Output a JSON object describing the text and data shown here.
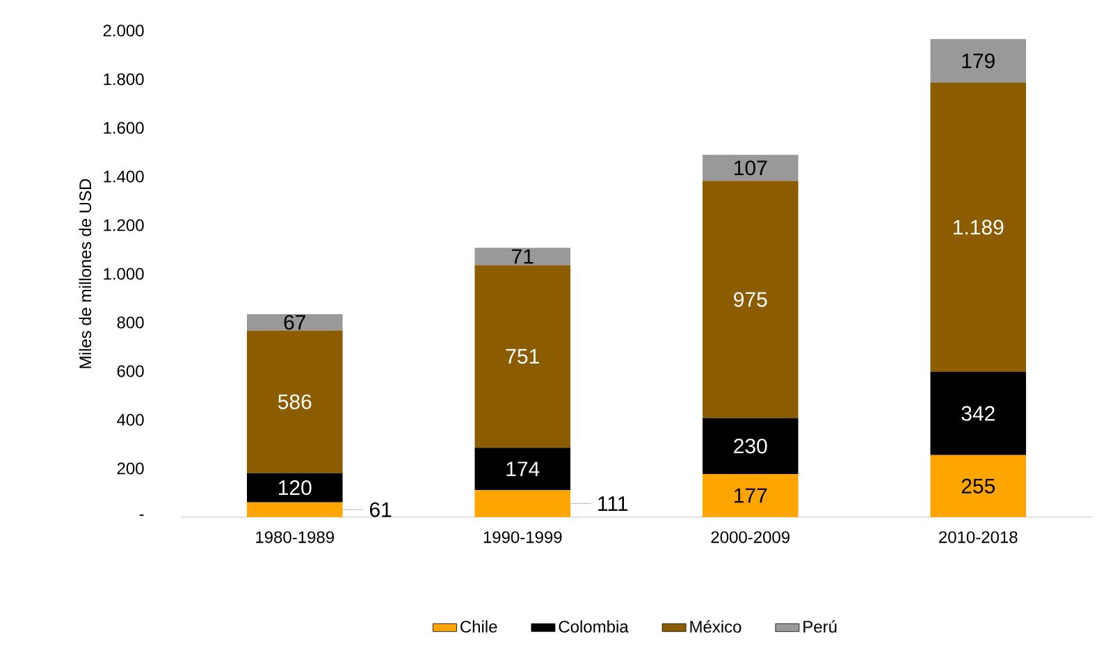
{
  "chart_data": {
    "type": "bar",
    "stacked": true,
    "ylabel": "Miles de millones de USD",
    "categories": [
      "1980-1989",
      "1990-1999",
      "2000-2009",
      "2010-2018"
    ],
    "series": [
      {
        "name": "Chile",
        "color": "#ffa500",
        "values": [
          61,
          111,
          177,
          255
        ],
        "value_labels": [
          "61",
          "111",
          "177",
          "255"
        ]
      },
      {
        "name": "Colombia",
        "color": "#000000",
        "values": [
          120,
          174,
          230,
          342
        ],
        "value_labels": [
          "120",
          "174",
          "230",
          "342"
        ]
      },
      {
        "name": "México",
        "color": "#8c5c00",
        "values": [
          586,
          751,
          975,
          1189
        ],
        "value_labels": [
          "586",
          "751",
          "975",
          "1.189"
        ]
      },
      {
        "name": "Perú",
        "color": "#999999",
        "values": [
          67,
          71,
          107,
          179
        ],
        "value_labels": [
          "67",
          "71",
          "107",
          "179"
        ]
      }
    ],
    "ylim": [
      0,
      2000
    ],
    "yticks": [
      {
        "value": 0,
        "label": "-"
      },
      200,
      400,
      600,
      800,
      {
        "value": 1000,
        "label": "1.000"
      },
      {
        "value": 1200,
        "label": "1.200"
      },
      {
        "value": 1400,
        "label": "1.400"
      },
      {
        "value": 1600,
        "label": "1.600"
      },
      {
        "value": 1800,
        "label": "1.800"
      },
      {
        "value": 2000,
        "label": "2.000"
      }
    ],
    "grid": false,
    "legend": "bottom"
  }
}
